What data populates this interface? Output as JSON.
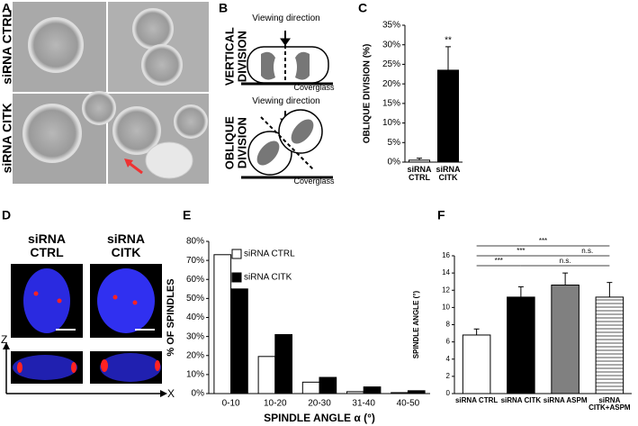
{
  "panels": {
    "A": {
      "letter": "A",
      "labels": [
        "siRNA CTRL",
        "siRNA CITK"
      ]
    },
    "B": {
      "letter": "B",
      "vertical": {
        "label": "VERTICAL DIVISION",
        "viewing": "Viewing direction",
        "glass": "Coverglass"
      },
      "oblique": {
        "label": "OBLIQUE DIVISION",
        "viewing": "Viewing direction",
        "glass": "Coverglass"
      }
    },
    "D": {
      "letter": "D",
      "labels": [
        "siRNA CTRL",
        "siRNA CITK"
      ],
      "axes": [
        "Z",
        "X"
      ]
    }
  },
  "chart_data": [
    {
      "type": "bar",
      "panel": "C",
      "y_label": "OBLIQUE DIVISION (%)",
      "categories": [
        "siRNA CTRL",
        "siRNA CITK"
      ],
      "values": [
        0.5,
        23.5
      ],
      "errors": [
        0.5,
        6
      ],
      "colors": [
        "#ffffff",
        "#000000"
      ],
      "annotations": [
        "**"
      ],
      "ylim": [
        0,
        35
      ],
      "yticks": [
        {
          "value": 0,
          "label": "0%"
        },
        {
          "value": 5,
          "label": "5%"
        },
        {
          "value": 10,
          "label": "10%"
        },
        {
          "value": 15,
          "label": "15%"
        },
        {
          "value": 20,
          "label": "20%"
        },
        {
          "value": 25,
          "label": "25%"
        },
        {
          "value": 30,
          "label": "30%"
        },
        {
          "value": 35,
          "label": "35%"
        }
      ]
    },
    {
      "type": "bar",
      "panel": "E",
      "y_label": "% OF SPINDLES",
      "x_label": "SPINDLE ANGLE α (°)",
      "categories": [
        "0-10",
        "10-20",
        "20-30",
        "31-40",
        "40-50"
      ],
      "series": [
        {
          "name": "siRNA CTRL",
          "color": "#ffffff",
          "values": [
            73,
            19.5,
            6,
            1,
            0.5
          ]
        },
        {
          "name": "siRNA CITK",
          "color": "#000000",
          "values": [
            55,
            31,
            8.5,
            3.5,
            1.5
          ]
        }
      ],
      "ylim": [
        0,
        80
      ],
      "yticks": [
        {
          "value": 0,
          "label": "0%"
        },
        {
          "value": 10,
          "label": "10%"
        },
        {
          "value": 20,
          "label": "20%"
        },
        {
          "value": 30,
          "label": "30%"
        },
        {
          "value": 40,
          "label": "40%"
        },
        {
          "value": 50,
          "label": "50%"
        },
        {
          "value": 60,
          "label": "60%"
        },
        {
          "value": 70,
          "label": "70%"
        },
        {
          "value": 80,
          "label": "80%"
        }
      ]
    },
    {
      "type": "bar",
      "panel": "F",
      "y_label": "SPINDLE ANGLE (°)",
      "categories": [
        "siRNA CTRL",
        "siRNA CITK",
        "siRNA ASPM",
        "siRNA CITK+ASPM"
      ],
      "values": [
        6.8,
        11.2,
        12.6,
        11.2
      ],
      "errors": [
        0.7,
        1.2,
        1.4,
        1.7
      ],
      "colors": [
        "#ffffff",
        "#000000",
        "#808080",
        "#ffffff"
      ],
      "hatch": [
        false,
        false,
        false,
        true
      ],
      "annotations": [
        "***",
        "***",
        "n.s.",
        "***",
        "n.s."
      ],
      "ylim": [
        0,
        16
      ],
      "yticks": [
        0,
        2,
        4,
        6,
        8,
        10,
        12,
        14,
        16
      ]
    }
  ]
}
